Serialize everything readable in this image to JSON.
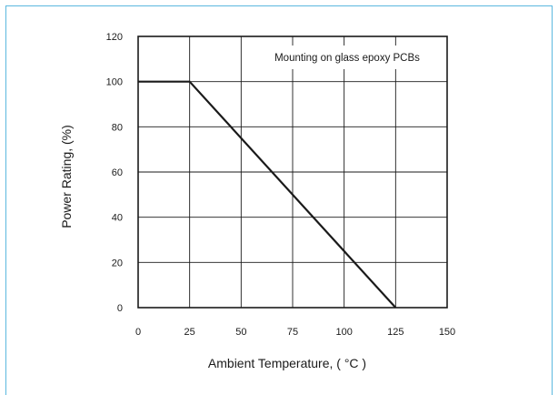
{
  "chart_data": {
    "type": "line",
    "title": "",
    "xlabel": "Ambient Temperature, ( °C )",
    "ylabel": "Power Rating, (%)",
    "xlim": [
      0,
      150
    ],
    "ylim": [
      0,
      120
    ],
    "x_ticks": [
      "0",
      "25",
      "50",
      "75",
      "100",
      "125",
      "150"
    ],
    "y_ticks": [
      "0",
      "20",
      "40",
      "60",
      "80",
      "100",
      "120"
    ],
    "grid": true,
    "annotation": "Mounting on glass epoxy PCBs",
    "series": [
      {
        "x": [
          0,
          25,
          125
        ],
        "y": [
          100,
          100,
          0
        ]
      }
    ]
  },
  "colors": {
    "frame_border": "#5bb8df",
    "axis": "#1a1a1a",
    "grid": "#1a1a1a",
    "line": "#1a1a1a"
  }
}
